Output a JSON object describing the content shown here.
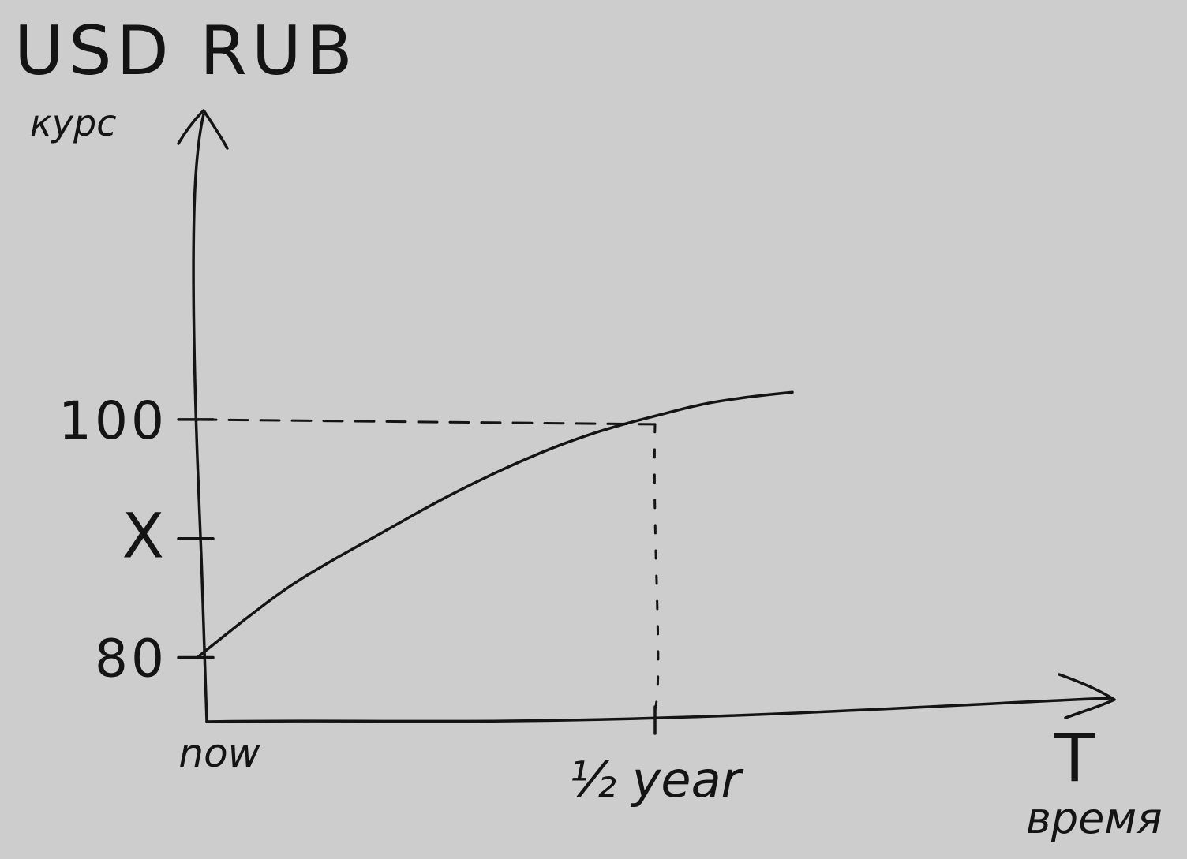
{
  "chart_data": {
    "type": "line",
    "title": "USD RUB",
    "ylabel": "курс",
    "xlabel": "время",
    "x_axis_symbol": "T",
    "x_ticks": [
      {
        "value": 0,
        "label": "now"
      },
      {
        "value": 0.5,
        "label": "½ year"
      }
    ],
    "y_ticks": [
      {
        "value": 80,
        "label": "80"
      },
      {
        "value": 90,
        "label": "X"
      },
      {
        "value": 100,
        "label": "100"
      }
    ],
    "series": [
      {
        "x": [
          0,
          0.05,
          0.1,
          0.15,
          0.2,
          0.25,
          0.3,
          0.35,
          0.4,
          0.45,
          0.5,
          0.55,
          0.6,
          0.65
        ],
        "values": [
          80,
          83.1,
          86.0,
          88.3,
          90.4,
          92.6,
          94.6,
          96.4,
          98.0,
          99.3,
          100.3,
          101.3,
          101.9,
          102.3
        ]
      }
    ],
    "reference_lines": [
      {
        "type": "horizontal",
        "y": 100,
        "to_x": 0.5,
        "style": "dashed"
      },
      {
        "type": "vertical",
        "x": 0.5,
        "to_y": 100,
        "style": "dashed"
      }
    ],
    "xlim": [
      0,
      1.0
    ],
    "ylim": [
      60,
      125
    ],
    "grid": false,
    "legend": "none"
  }
}
